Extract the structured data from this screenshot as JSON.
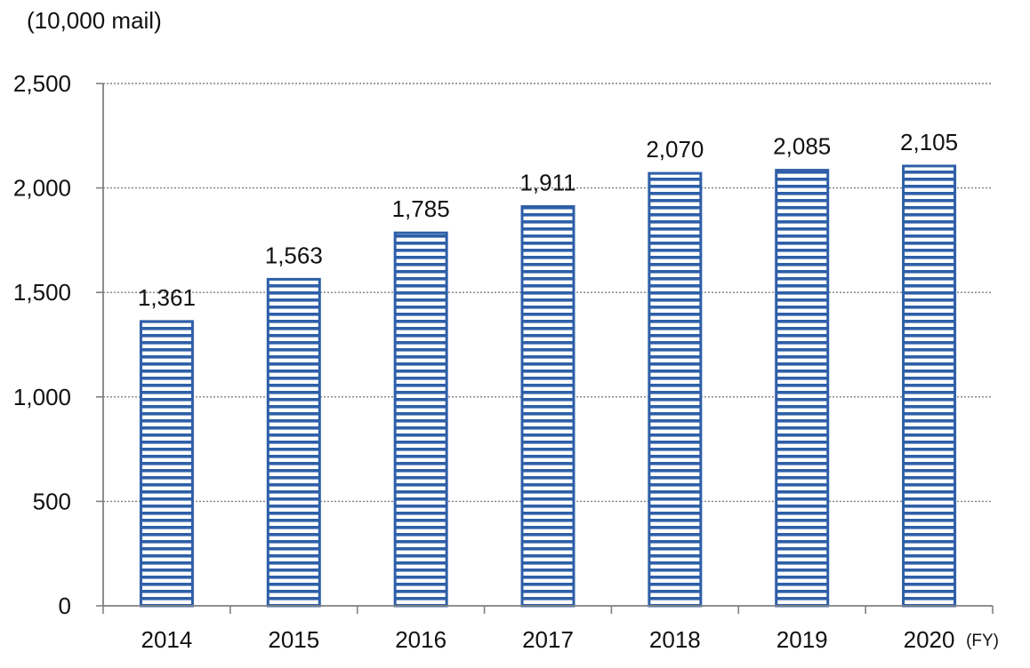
{
  "chart_data": {
    "type": "bar",
    "unit_label": "(10,000 mail)",
    "x_unit_label": "(FY)",
    "categories": [
      "2014",
      "2015",
      "2016",
      "2017",
      "2018",
      "2019",
      "2020"
    ],
    "values": [
      1361,
      1563,
      1785,
      1911,
      2070,
      2085,
      2105
    ],
    "data_labels": [
      "1,361",
      "1,563",
      "1,785",
      "1,911",
      "2,070",
      "2,085",
      "2,105"
    ],
    "y_ticks": [
      0,
      500,
      1000,
      1500,
      2000,
      2500
    ],
    "y_tick_labels": [
      "0",
      "500",
      "1,000",
      "1,500",
      "2,000",
      "2,500"
    ],
    "ylim": [
      0,
      2500
    ],
    "grid": "horizontal-dotted",
    "bar_pattern": "horizontal-stripes",
    "colors": {
      "bar_stroke": "#2e5fa8",
      "bar_stripe": "#2e5fa8",
      "bar_fill": "#ffffff",
      "grid": "#808080",
      "axis": "#808080"
    }
  }
}
